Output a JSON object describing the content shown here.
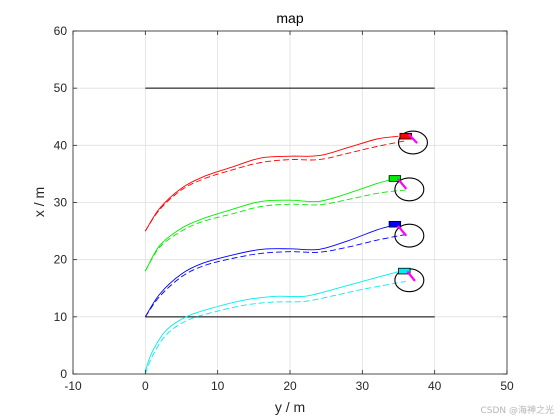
{
  "chart_data": {
    "type": "line",
    "title": "map",
    "xlabel": "y / m",
    "ylabel": "x / m",
    "xlim": [
      -10,
      50
    ],
    "ylim": [
      0,
      60
    ],
    "xticks": [
      -10,
      0,
      10,
      20,
      30,
      40,
      50
    ],
    "yticks": [
      0,
      10,
      20,
      30,
      40,
      50,
      60
    ],
    "grid": true,
    "boundaries": [
      {
        "color": "#000000",
        "x": [
          0,
          40
        ],
        "y": [
          50,
          50
        ]
      },
      {
        "color": "#000000",
        "x": [
          0,
          40
        ],
        "y": [
          10,
          10
        ]
      }
    ],
    "series": [
      {
        "color": "#ff0000",
        "style": "solid",
        "x": [
          0,
          2,
          5,
          8,
          12,
          16,
          20,
          24,
          28,
          32,
          35
        ],
        "y": [
          25,
          29,
          32.5,
          34.5,
          36.2,
          37.8,
          38.1,
          38.2,
          39.6,
          41.1,
          41.6
        ]
      },
      {
        "color": "#ff0000",
        "style": "dashed",
        "x": [
          0,
          2,
          5,
          8,
          12,
          16,
          20,
          24,
          28,
          32,
          36
        ],
        "y": [
          25,
          28.8,
          32.2,
          34.1,
          35.7,
          37.0,
          37.5,
          37.5,
          38.6,
          39.8,
          40.8
        ]
      },
      {
        "color": "#00ee00",
        "style": "solid",
        "x": [
          0,
          2,
          5,
          8,
          12,
          16,
          20,
          24,
          28,
          32,
          34.5
        ],
        "y": [
          18,
          22.5,
          25.5,
          27.2,
          28.8,
          30.2,
          30.4,
          30.2,
          31.6,
          33.3,
          34.2
        ]
      },
      {
        "color": "#00ee00",
        "style": "dashed",
        "x": [
          0,
          2,
          5,
          8,
          12,
          16,
          20,
          24,
          28,
          32,
          36
        ],
        "y": [
          18,
          22.2,
          25.0,
          26.7,
          28.0,
          29.3,
          29.7,
          29.6,
          30.5,
          31.6,
          32.2
        ]
      },
      {
        "color": "#0000ff",
        "style": "solid",
        "x": [
          0,
          2,
          5,
          8,
          12,
          16,
          20,
          24,
          28,
          32,
          34.5
        ],
        "y": [
          10,
          14,
          17.5,
          19.4,
          20.8,
          21.8,
          21.9,
          21.8,
          23.3,
          25.2,
          26.1
        ]
      },
      {
        "color": "#0000ff",
        "style": "dashed",
        "x": [
          0,
          2,
          5,
          8,
          12,
          16,
          20,
          24,
          28,
          32,
          36
        ],
        "y": [
          10,
          13.6,
          17.0,
          18.9,
          20.2,
          21.1,
          21.4,
          21.3,
          22.2,
          23.4,
          24.4
        ]
      },
      {
        "color": "#00eeee",
        "style": "solid",
        "x": [
          0,
          1,
          3,
          6,
          10,
          14,
          18,
          22,
          26,
          30,
          35
        ],
        "y": [
          0.5,
          4,
          7.8,
          10.2,
          11.8,
          13.0,
          13.6,
          13.6,
          14.8,
          16.2,
          17.9
        ]
      },
      {
        "color": "#00eeee",
        "style": "dashed",
        "x": [
          0,
          1,
          3,
          6,
          10,
          14,
          18,
          22,
          26,
          30,
          36
        ],
        "y": [
          0,
          3.2,
          7.0,
          9.5,
          11.0,
          12.1,
          12.6,
          12.7,
          13.7,
          14.8,
          16.2
        ]
      }
    ],
    "vehicles": [
      {
        "color": "#ff0000",
        "x": 36.0,
        "y": 41.6,
        "length": 1.6,
        "width": 1.0
      },
      {
        "color": "#00ee00",
        "x": 34.5,
        "y": 34.2,
        "length": 1.6,
        "width": 1.0
      },
      {
        "color": "#0000ff",
        "x": 34.5,
        "y": 26.2,
        "length": 1.6,
        "width": 1.0
      },
      {
        "color": "#00eeee",
        "x": 35.8,
        "y": 18.0,
        "length": 1.6,
        "width": 1.0
      }
    ],
    "circles": [
      {
        "color": "#000000",
        "x": 37.0,
        "y": 40.5,
        "r": 2.0
      },
      {
        "color": "#000000",
        "x": 36.5,
        "y": 32.3,
        "r": 2.0
      },
      {
        "color": "#000000",
        "x": 36.5,
        "y": 24.2,
        "r": 2.0
      },
      {
        "color": "#000000",
        "x": 36.5,
        "y": 16.4,
        "r": 2.0
      }
    ],
    "headings": [
      {
        "color": "#ff00ff",
        "x": [
          36.5,
          37.5
        ],
        "y": [
          41.8,
          40.5
        ]
      },
      {
        "color": "#ff00ff",
        "x": [
          35.0,
          36.0
        ],
        "y": [
          34.0,
          32.5
        ]
      },
      {
        "color": "#ff00ff",
        "x": [
          35.0,
          36.0
        ],
        "y": [
          25.8,
          24.3
        ]
      },
      {
        "color": "#ff00ff",
        "x": [
          36.3,
          37.2
        ],
        "y": [
          17.8,
          16.4
        ]
      }
    ]
  },
  "watermark": "CSDN @海神之光"
}
